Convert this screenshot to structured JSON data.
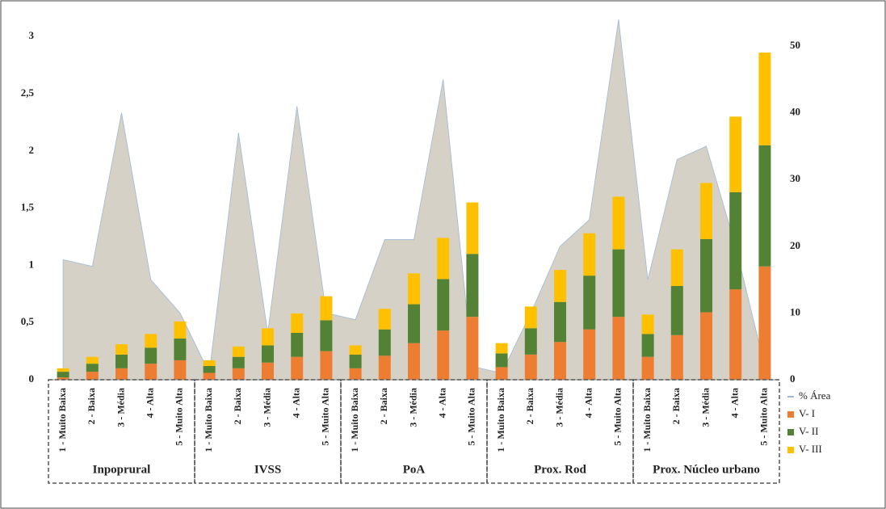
{
  "chart_data": {
    "type": "bar",
    "stacked": true,
    "groups": [
      {
        "name": "Inpoprural",
        "categories": [
          "1 - Muito Baixa",
          "2 - Baixa",
          "3 - Média",
          "4 - Alta",
          "5 - Muito Alta"
        ]
      },
      {
        "name": "IVSS",
        "categories": [
          "1 - Muito Baixa",
          "2 - Baixa",
          "3 - Média",
          "4 - Alta",
          "5 - Muito Alta"
        ]
      },
      {
        "name": "PoA",
        "categories": [
          "1 - Muito Baixa",
          "2 - Baixa",
          "3 - Média",
          "4 - Alta",
          "5 - Muito Alta"
        ]
      },
      {
        "name": "Prox. Rod",
        "categories": [
          "1 - Muito Baixa",
          "2 - Baixa",
          "3 - Média",
          "4 - Alta",
          "5 - Muito Alta"
        ]
      },
      {
        "name": "Prox. Núcleo urbano",
        "categories": [
          "1 - Muito Baixa",
          "2 - Baixa",
          "3 - Média",
          "4 - Alta",
          "5 - Muito Alta"
        ]
      }
    ],
    "series": [
      {
        "name": "% Área",
        "type": "area",
        "axis": "y2",
        "color": "#c8c2b4",
        "values": [
          18,
          17,
          40,
          15,
          10,
          1,
          37,
          7,
          41,
          10,
          9,
          21,
          21,
          45,
          2,
          1,
          10,
          20,
          24,
          54,
          15,
          33,
          35,
          20,
          2
        ]
      },
      {
        "name": "V- I",
        "color": "#ed7d31",
        "values": [
          0.02,
          0.07,
          0.1,
          0.14,
          0.17,
          0.06,
          0.1,
          0.15,
          0.2,
          0.25,
          0.1,
          0.21,
          0.32,
          0.43,
          0.55,
          0.11,
          0.22,
          0.33,
          0.44,
          0.55,
          0.2,
          0.39,
          0.59,
          0.79,
          0.99
        ]
      },
      {
        "name": "V- II",
        "color": "#548235",
        "values": [
          0.05,
          0.07,
          0.12,
          0.14,
          0.19,
          0.06,
          0.1,
          0.15,
          0.21,
          0.27,
          0.12,
          0.23,
          0.34,
          0.45,
          0.55,
          0.12,
          0.23,
          0.35,
          0.47,
          0.59,
          0.2,
          0.43,
          0.64,
          0.85,
          1.06
        ]
      },
      {
        "name": "V- III",
        "color": "#ffc000",
        "values": [
          0.03,
          0.06,
          0.09,
          0.12,
          0.15,
          0.05,
          0.09,
          0.15,
          0.17,
          0.21,
          0.08,
          0.18,
          0.27,
          0.36,
          0.45,
          0.09,
          0.19,
          0.28,
          0.37,
          0.46,
          0.17,
          0.32,
          0.49,
          0.66,
          0.81
        ]
      }
    ],
    "ylim": [
      0,
      3.15
    ],
    "yticks": [
      0,
      {
        "value": 0.5,
        "label": "0,5"
      },
      1,
      {
        "value": 1.5,
        "label": "1,5"
      },
      2,
      {
        "value": 2.5,
        "label": "2,5"
      },
      3
    ],
    "y2lim": [
      0,
      54
    ],
    "y2ticks": [
      0,
      10,
      20,
      30,
      40,
      50
    ]
  }
}
